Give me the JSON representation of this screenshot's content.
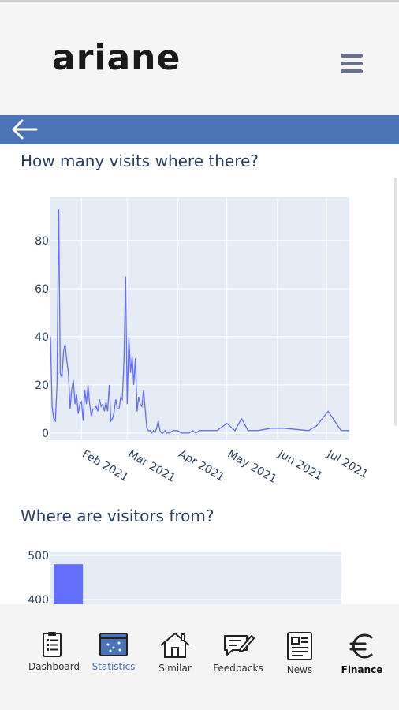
{
  "app": {
    "logo_text": "ariane"
  },
  "header": {
    "menu_icon": "hamburger-menu-icon",
    "back_icon": "arrow-left-icon"
  },
  "sections": {
    "visits_title": "How many visits where there?",
    "origin_title": "Where are visitors from?"
  },
  "colors": {
    "header_bar": "#4a73b8",
    "plot_bg": "#e5ecf6",
    "series": "#636efa",
    "text": "#2a3f5f",
    "nav_active": "#4a73b8"
  },
  "chart_data": [
    {
      "type": "line",
      "title": "",
      "xlabel": "",
      "ylabel": "",
      "x_tick_labels": [
        "Feb 2021",
        "Mar 2021",
        "Apr 2021",
        "May 2021",
        "Jun 2021",
        "Jul 2021"
      ],
      "y_tick_labels": [
        "0",
        "20",
        "40",
        "60",
        "80"
      ],
      "ylim": [
        -3,
        98
      ],
      "xlim": [
        "2021-01-13",
        "2021-07-15"
      ],
      "grid": true,
      "series": [
        {
          "x": [
            "2021-01-13",
            "2021-01-14",
            "2021-01-15",
            "2021-01-16",
            "2021-01-17",
            "2021-01-18",
            "2021-01-19",
            "2021-01-20",
            "2021-01-21",
            "2021-01-22",
            "2021-01-23",
            "2021-01-24",
            "2021-01-25",
            "2021-01-26",
            "2021-01-27",
            "2021-01-28",
            "2021-01-29",
            "2021-01-30",
            "2021-01-31",
            "2021-02-01",
            "2021-02-02",
            "2021-02-03",
            "2021-02-04",
            "2021-02-05",
            "2021-02-06",
            "2021-02-07",
            "2021-02-08",
            "2021-02-09",
            "2021-02-10",
            "2021-02-11",
            "2021-02-12",
            "2021-02-13",
            "2021-02-14",
            "2021-02-15",
            "2021-02-16",
            "2021-02-17",
            "2021-02-18",
            "2021-02-19",
            "2021-02-20",
            "2021-02-21",
            "2021-02-22",
            "2021-02-23",
            "2021-02-24",
            "2021-02-25",
            "2021-02-26",
            "2021-02-27",
            "2021-02-28",
            "2021-03-01",
            "2021-03-02",
            "2021-03-03",
            "2021-03-04",
            "2021-03-05",
            "2021-03-06",
            "2021-03-07",
            "2021-03-08",
            "2021-03-09",
            "2021-03-10",
            "2021-03-11",
            "2021-03-12",
            "2021-03-13",
            "2021-03-14",
            "2021-03-15",
            "2021-03-16",
            "2021-03-17",
            "2021-03-18",
            "2021-03-19",
            "2021-03-20",
            "2021-03-21",
            "2021-03-22",
            "2021-03-23",
            "2021-03-24",
            "2021-03-25",
            "2021-03-27",
            "2021-03-29",
            "2021-04-01",
            "2021-04-03",
            "2021-04-05",
            "2021-04-08",
            "2021-04-10",
            "2021-04-12",
            "2021-04-14",
            "2021-04-18",
            "2021-04-25",
            "2021-05-01",
            "2021-05-06",
            "2021-05-10",
            "2021-05-14",
            "2021-05-20",
            "2021-05-28",
            "2021-06-05",
            "2021-06-20",
            "2021-06-25",
            "2021-07-02",
            "2021-07-10",
            "2021-07-15"
          ],
          "y": [
            40,
            11,
            6,
            5,
            20,
            93,
            25,
            23,
            34,
            37,
            30,
            25,
            10,
            18,
            22,
            12,
            16,
            8,
            12,
            13,
            5,
            18,
            12,
            20,
            12,
            7,
            10,
            10,
            11,
            9,
            14,
            11,
            12,
            9,
            13,
            9,
            20,
            5,
            6,
            9,
            14,
            10,
            10,
            15,
            14,
            30,
            65,
            12,
            40,
            25,
            32,
            20,
            31,
            9,
            15,
            12,
            11,
            18,
            10,
            2,
            1,
            1,
            0,
            1,
            0,
            2,
            5,
            1,
            0,
            0,
            1,
            0,
            0,
            1,
            1,
            0,
            0,
            0,
            1,
            0,
            1,
            1,
            1,
            4,
            1,
            6,
            1,
            1,
            2,
            2,
            1,
            3,
            9,
            1,
            1
          ]
        }
      ]
    },
    {
      "type": "bar",
      "title": "",
      "xlabel": "",
      "ylabel": "",
      "y_tick_labels": [
        "400",
        "500"
      ],
      "ylim": [
        0,
        500
      ],
      "categories": [
        ""
      ],
      "values": [
        480
      ]
    }
  ],
  "nav": {
    "items": [
      {
        "label": "Dashboard",
        "icon": "clipboard-icon",
        "active": false
      },
      {
        "label": "Statistics",
        "icon": "calendar-chart-icon",
        "active": true
      },
      {
        "label": "Similar",
        "icon": "house-icon",
        "active": false
      },
      {
        "label": "Feedbacks",
        "icon": "feedback-pen-icon",
        "active": false
      },
      {
        "label": "News",
        "icon": "newspaper-icon",
        "active": false
      },
      {
        "label": "Finance",
        "icon": "euro-icon",
        "active": false
      }
    ]
  }
}
